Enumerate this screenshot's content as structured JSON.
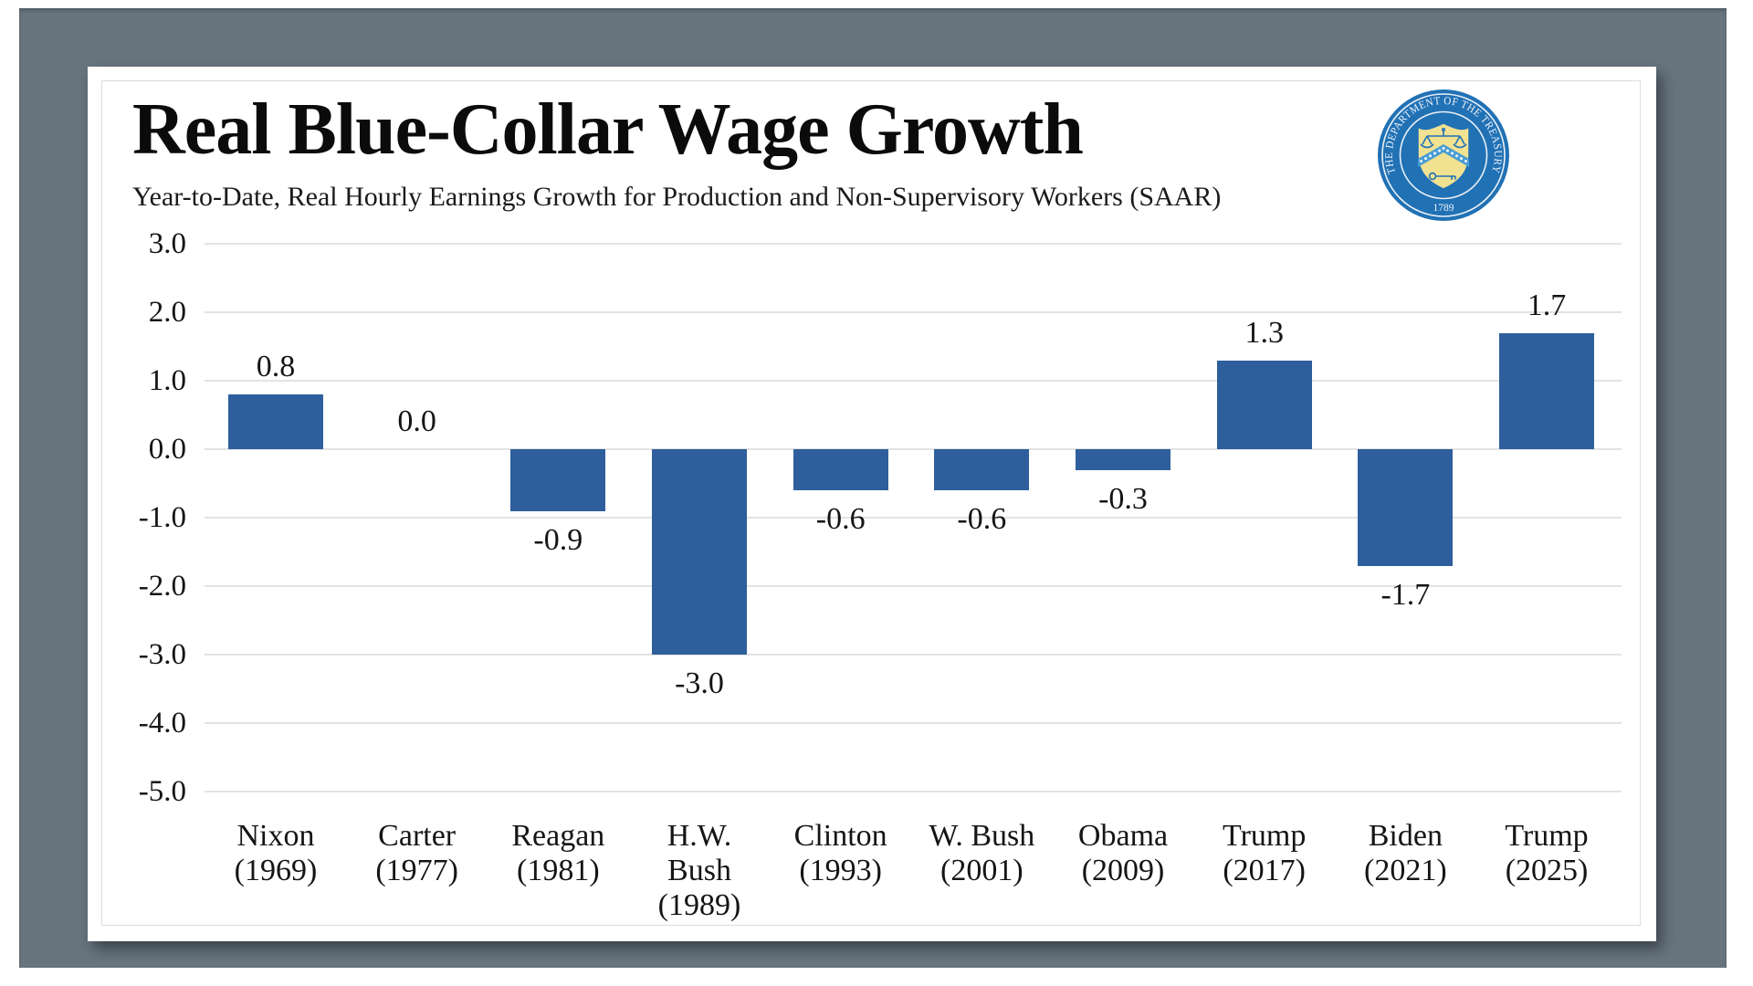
{
  "header": {
    "title": "Real Blue-Collar Wage Growth",
    "subtitle": "Year-to-Date, Real Hourly Earnings Growth for Production and Non-Supervisory Workers (SAAR)"
  },
  "seal": {
    "name": "us-department-of-the-treasury-seal",
    "ring_text": "THE DEPARTMENT OF THE TREASURY",
    "year": "1789"
  },
  "colors": {
    "frame_background": "#68747e",
    "card_background": "#ffffff",
    "bar": "#2e5f9c",
    "gridline": "#e3e3e3",
    "text": "#151515",
    "seal_blue": "#2171b5",
    "seal_chevron": "#4a9ed4",
    "seal_gold": "#f1e291"
  },
  "chart_data": {
    "type": "bar",
    "title": "Real Blue-Collar Wage Growth",
    "subtitle": "Year-to-Date, Real Hourly Earnings Growth for Production and Non-Supervisory Workers (SAAR)",
    "categories": [
      "Nixon (1969)",
      "Carter (1977)",
      "Reagan (1981)",
      "H.W. Bush (1989)",
      "Clinton (1993)",
      "W. Bush (2001)",
      "Obama (2009)",
      "Trump (2017)",
      "Biden (2021)",
      "Trump (2025)"
    ],
    "category_lines": [
      [
        "Nixon",
        "(1969)"
      ],
      [
        "Carter",
        "(1977)"
      ],
      [
        "Reagan",
        "(1981)"
      ],
      [
        "H.W.",
        "Bush",
        "(1989)"
      ],
      [
        "Clinton",
        "(1993)"
      ],
      [
        "W. Bush",
        "(2001)"
      ],
      [
        "Obama",
        "(2009)"
      ],
      [
        "Trump",
        "(2017)"
      ],
      [
        "Biden",
        "(2021)"
      ],
      [
        "Trump",
        "(2025)"
      ]
    ],
    "values": [
      0.8,
      0.0,
      -0.9,
      -3.0,
      -0.6,
      -0.6,
      -0.3,
      1.3,
      -1.7,
      1.7
    ],
    "value_labels": [
      "0.8",
      "0.0",
      "-0.9",
      "-3.0",
      "-0.6",
      "-0.6",
      "-0.3",
      "1.3",
      "-1.7",
      "1.7"
    ],
    "y_ticks": [
      3.0,
      2.0,
      1.0,
      0.0,
      -1.0,
      -2.0,
      -3.0,
      -4.0,
      -5.0
    ],
    "y_tick_labels": [
      "3.0",
      "2.0",
      "1.0",
      "0.0",
      "-1.0",
      "-2.0",
      "-3.0",
      "-4.0",
      "-5.0"
    ],
    "ylim": [
      -5.0,
      3.0
    ],
    "grid": true,
    "legend": false,
    "xlabel": "",
    "ylabel": ""
  }
}
